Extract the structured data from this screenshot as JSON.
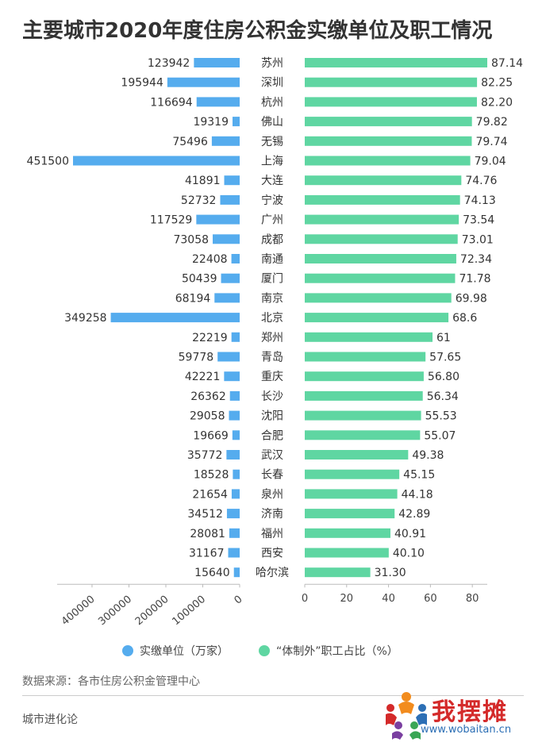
{
  "title": "主要城市2020年度住房公积金实缴单位及职工情况",
  "chart_data": {
    "type": "bar",
    "title": "主要城市2020年度住房公积金实缴单位及职工情况",
    "categories": [
      "苏州",
      "深圳",
      "杭州",
      "佛山",
      "无锡",
      "上海",
      "大连",
      "宁波",
      "广州",
      "成都",
      "南通",
      "厦门",
      "南京",
      "北京",
      "郑州",
      "青岛",
      "重庆",
      "长沙",
      "沈阳",
      "合肥",
      "武汉",
      "长春",
      "泉州",
      "济南",
      "福州",
      "西安",
      "哈尔滨"
    ],
    "series": [
      {
        "name": "实缴单位（万家）",
        "color": "#55acee",
        "direction": "left",
        "values": [
          123942,
          195944,
          116694,
          19319,
          75496,
          451500,
          41891,
          52732,
          117529,
          73058,
          22408,
          50439,
          68194,
          349258,
          22219,
          59778,
          42221,
          26362,
          29058,
          19669,
          35772,
          18528,
          21654,
          34512,
          28081,
          31167,
          15640
        ],
        "labels": [
          "123942",
          "195944",
          "116694",
          "19319",
          "75496",
          "451500",
          "41891",
          "52732",
          "117529",
          "73058",
          "22408",
          "50439",
          "68194",
          "349258",
          "22219",
          "59778",
          "42221",
          "26362",
          "29058",
          "19669",
          "35772",
          "18528",
          "21654",
          "34512",
          "28081",
          "31167",
          "15640"
        ],
        "axis_ticks": [
          400000,
          300000,
          200000,
          100000,
          0
        ],
        "xlim": [
          0,
          451500
        ]
      },
      {
        "name": "“体制外”职工占比（%）",
        "color": "#5fd6a2",
        "direction": "right",
        "values": [
          87.14,
          82.25,
          82.2,
          79.82,
          79.74,
          79.04,
          74.76,
          74.13,
          73.54,
          73.01,
          72.34,
          71.78,
          69.98,
          68.6,
          61,
          57.65,
          56.8,
          56.34,
          55.53,
          55.07,
          49.38,
          45.15,
          44.18,
          42.89,
          40.91,
          40.1,
          31.3
        ],
        "labels": [
          "87.14",
          "82.25",
          "82.20",
          "79.82",
          "79.74",
          "79.04",
          "74.76",
          "74.13",
          "73.54",
          "73.01",
          "72.34",
          "71.78",
          "69.98",
          "68.6",
          "61",
          "57.65",
          "56.80",
          "56.34",
          "55.53",
          "55.07",
          "49.38",
          "45.15",
          "44.18",
          "42.89",
          "40.91",
          "40.10",
          "31.30"
        ],
        "axis_ticks": [
          0,
          20,
          40,
          60,
          80
        ],
        "xlim": [
          0,
          87.14
        ]
      }
    ],
    "legend_position": "bottom",
    "grid": false
  },
  "source": "数据来源：各市住房公积金管理中心",
  "publisher": "城市进化论",
  "watermark": {
    "text_cn": "我摆摊",
    "url": "www.wobaitan.cn",
    "logo_icon": "people-logo-icon"
  }
}
